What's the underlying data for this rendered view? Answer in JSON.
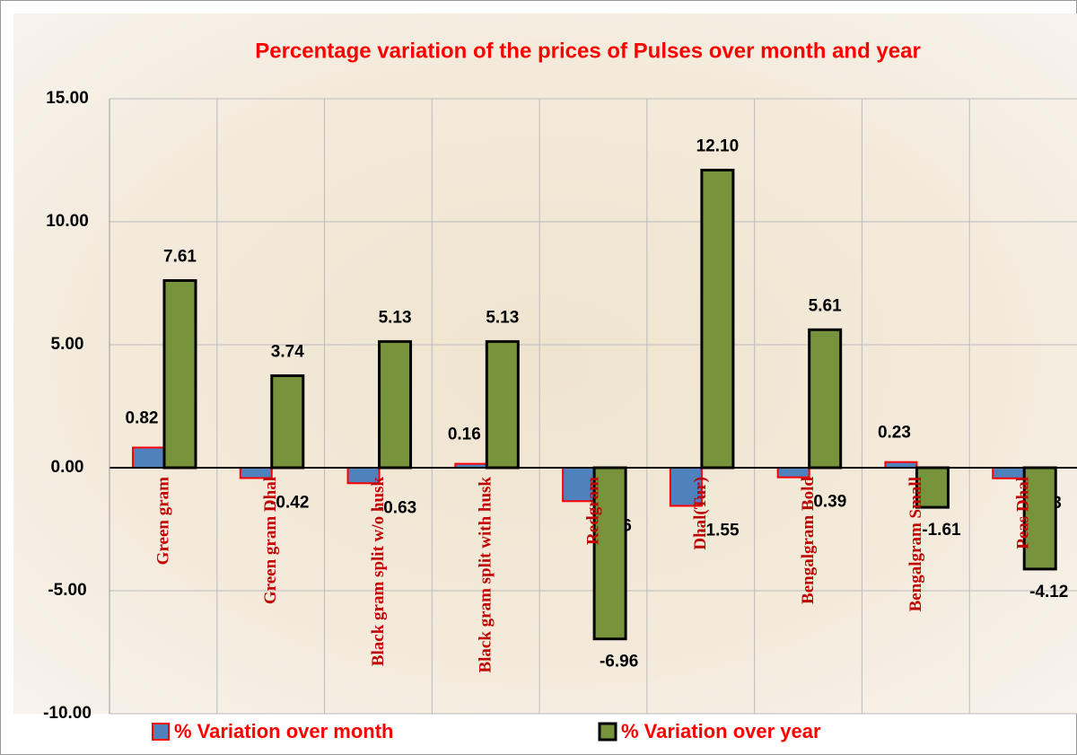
{
  "chart_data": {
    "type": "bar",
    "title": "Percentage variation of the prices of Pulses over month and year",
    "categories": [
      "Green gram",
      "Green gram Dhal",
      "Black gram  split w/o husk",
      "Black gram  split with husk",
      "Redgram",
      "Dhal(Tur)",
      "Bengalgram Bold",
      "Bengalgram Small",
      "Peas Dhal"
    ],
    "series": [
      {
        "name": "%  Variation over month",
        "color": "#4f81bd",
        "border": "#ff0000",
        "values": [
          0.82,
          -0.42,
          -0.63,
          0.16,
          -1.36,
          -1.55,
          -0.39,
          0.23,
          -0.43
        ],
        "value_labels": [
          "0.82",
          "-0.42",
          "-0.63",
          "0.16",
          "-1.36",
          "-1.55",
          "-0.39",
          "0.23",
          "-0.43"
        ]
      },
      {
        "name": "% Variation over year",
        "color": "#77933c",
        "border": "#000000",
        "values": [
          7.61,
          3.74,
          5.13,
          5.13,
          -6.96,
          12.1,
          5.61,
          -1.61,
          -4.12
        ],
        "value_labels": [
          "7.61",
          "3.74",
          "5.13",
          "5.13",
          "-6.96",
          "12.10",
          "5.61",
          "-1.61",
          "-4.12"
        ]
      }
    ],
    "ylim": [
      -10,
      15
    ],
    "yticks": [
      {
        "value": -10,
        "label": "-10.00"
      },
      {
        "value": -5,
        "label": "-5.00"
      },
      {
        "value": 0,
        "label": "0.00"
      },
      {
        "value": 5,
        "label": "5.00"
      },
      {
        "value": 10,
        "label": "10.00"
      },
      {
        "value": 15,
        "label": "15.00"
      }
    ],
    "grid": true
  }
}
